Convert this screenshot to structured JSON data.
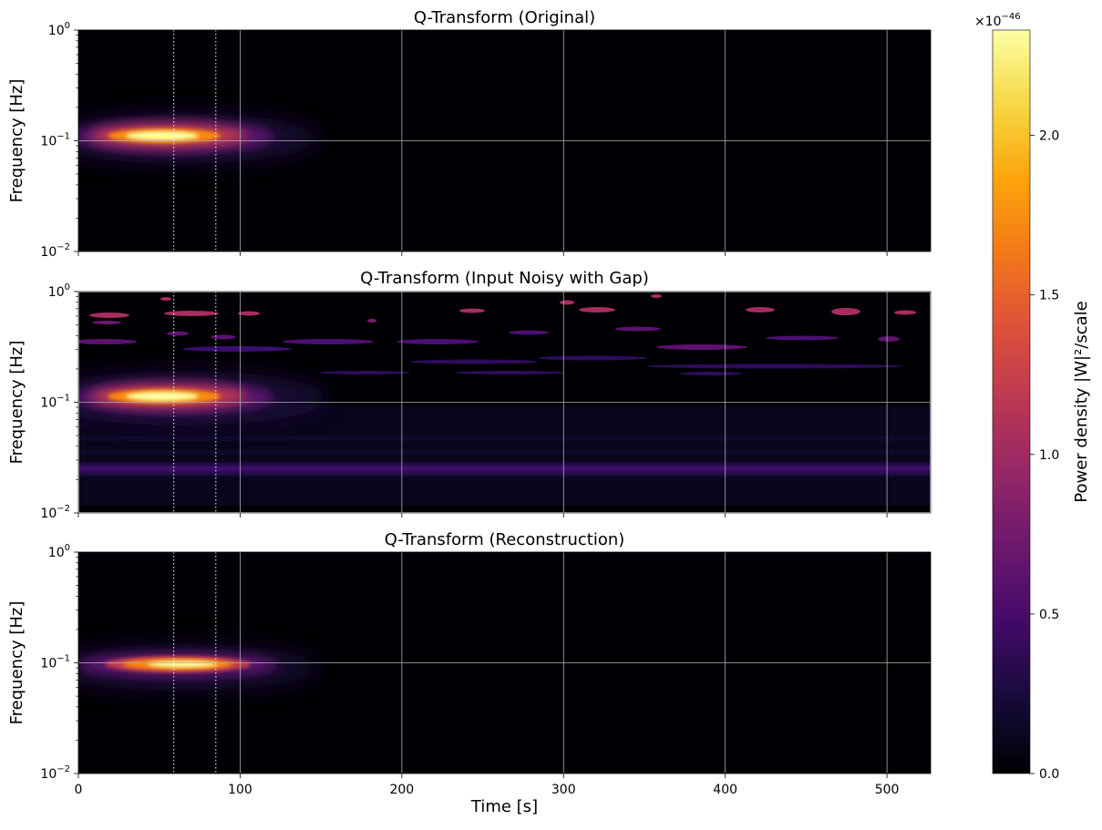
{
  "chart_data": [
    {
      "type": "heatmap",
      "title": "Q-Transform (Original)",
      "xlabel": "",
      "ylabel": "Frequency [Hz]",
      "xlim": [
        0,
        527
      ],
      "ylim": [
        0.01,
        1
      ],
      "yscale": "log",
      "x_ticks": [
        0,
        100,
        200,
        300,
        400,
        500
      ],
      "x_tick_labels": [
        "",
        "",
        "",
        "",
        "",
        ""
      ],
      "y_ticks": [
        0.01,
        0.1,
        1
      ],
      "grid": true,
      "gap_markers": [
        59,
        85
      ],
      "features": [
        {
          "kind": "blob",
          "t_center": 72,
          "f_center": 0.11,
          "t_half_width": 45,
          "peak": 2.3
        }
      ]
    },
    {
      "type": "heatmap",
      "title": "Q-Transform (Input Noisy with Gap)",
      "xlabel": "",
      "ylabel": "Frequency [Hz]",
      "xlim": [
        0,
        527
      ],
      "ylim": [
        0.01,
        1
      ],
      "yscale": "log",
      "x_ticks": [
        0,
        100,
        200,
        300,
        400,
        500
      ],
      "x_tick_labels": [
        "",
        "",
        "",
        "",
        "",
        ""
      ],
      "y_ticks": [
        0.01,
        0.1,
        1
      ],
      "grid": true,
      "gap_markers": [
        59,
        85
      ],
      "features": [
        {
          "kind": "blob",
          "t_center": 72,
          "f_center": 0.11,
          "t_half_width": 45,
          "peak": 2.3
        },
        {
          "kind": "band",
          "f_center": 0.025,
          "level": 0.35
        },
        {
          "kind": "noise_patches",
          "f_range": [
            0.18,
            0.9
          ],
          "level": 0.9
        }
      ]
    },
    {
      "type": "heatmap",
      "title": "Q-Transform (Reconstruction)",
      "xlabel": "Time [s]",
      "ylabel": "Frequency [Hz]",
      "xlim": [
        0,
        527
      ],
      "ylim": [
        0.01,
        1
      ],
      "yscale": "log",
      "x_ticks": [
        0,
        100,
        200,
        300,
        400,
        500
      ],
      "x_tick_labels": [
        "0",
        "100",
        "200",
        "300",
        "400",
        "500"
      ],
      "y_ticks": [
        0.01,
        0.1,
        1
      ],
      "grid": true,
      "gap_markers": [
        59,
        85
      ],
      "features": [
        {
          "kind": "blob",
          "t_center": 72,
          "f_center": 0.1,
          "t_half_width": 42,
          "peak": 2.3
        }
      ]
    }
  ],
  "colorbar": {
    "label": "Power density |W|²/scale",
    "multiplier": "×10",
    "exponent": "−46",
    "colormap": "inferno",
    "range": [
      0,
      2.33
    ],
    "ticks": [
      0.0,
      0.5,
      1.0,
      1.5,
      2.0
    ],
    "tick_labels": [
      "0.0",
      "0.5",
      "1.0",
      "1.5",
      "2.0"
    ]
  },
  "y_tick_labels": [
    {
      "mantissa": "10",
      "exponent": "−2"
    },
    {
      "mantissa": "10",
      "exponent": "−1"
    },
    {
      "mantissa": "10",
      "exponent": "0"
    }
  ],
  "colors": {
    "background": "#000004",
    "grid": "#b0b0b0",
    "gap_marker": "#ffffff"
  }
}
